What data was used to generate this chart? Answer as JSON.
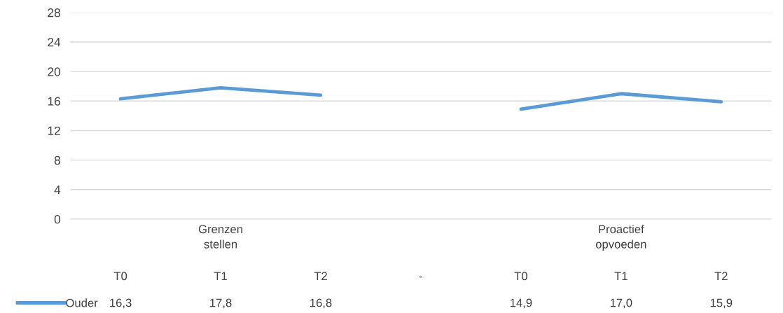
{
  "chart_data": {
    "type": "line",
    "categories": [
      "T0",
      "T1",
      "T2",
      "-",
      "T0",
      "T1",
      "T2"
    ],
    "series": [
      {
        "name": "Ouder",
        "color": "#5b9bd5",
        "values": [
          16.3,
          17.8,
          16.8,
          null,
          14.9,
          17.0,
          15.9
        ],
        "value_labels": [
          "16,3",
          "17,8",
          "16,8",
          null,
          "14,9",
          "17,0",
          "15,9"
        ]
      }
    ],
    "annotations": [
      "Grenzen\nstellen",
      "Proactief\nopvoeden"
    ],
    "ylim": [
      0,
      28
    ],
    "yticks": [
      0,
      4,
      8,
      12,
      16,
      20,
      24,
      28
    ],
    "grid": "y",
    "legend": "bottom",
    "marker": "none",
    "line_style": "solid"
  }
}
